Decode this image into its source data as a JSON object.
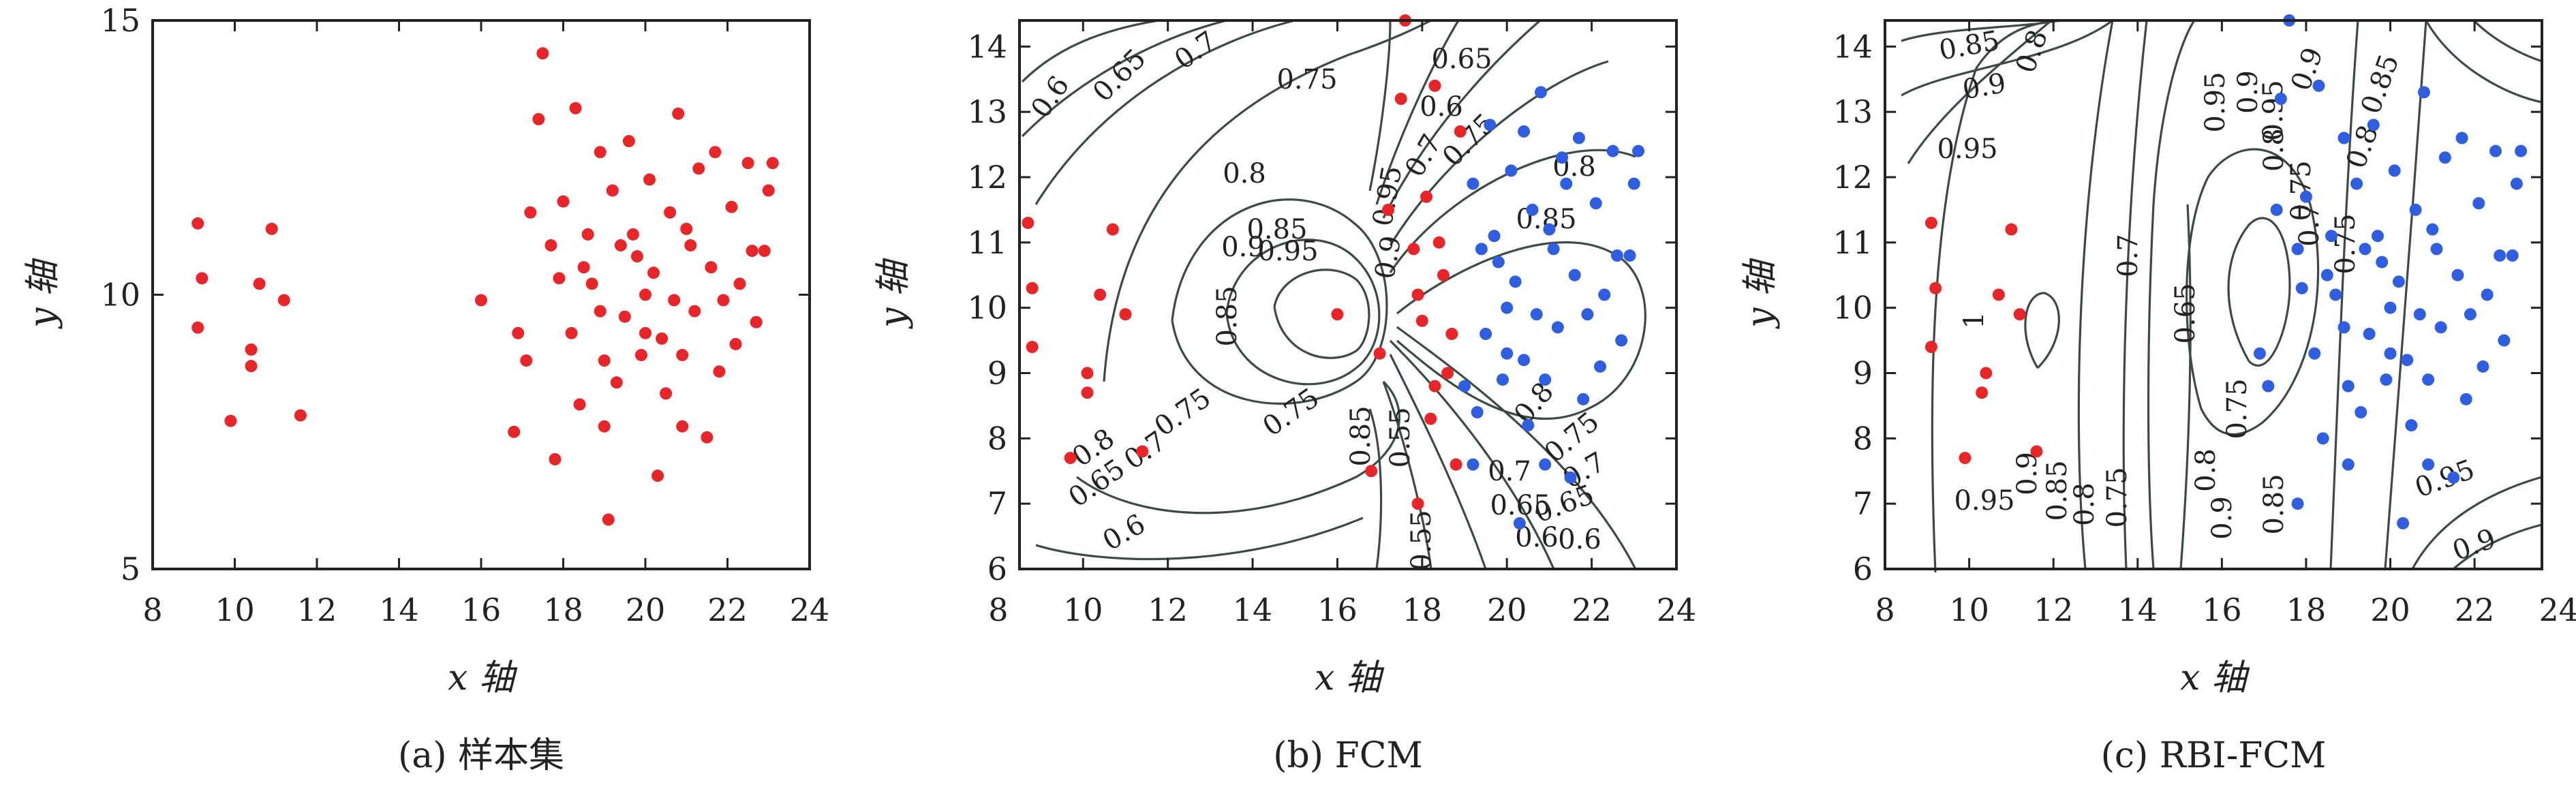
{
  "figure": {
    "colors": {
      "red": "#e8262a",
      "blue": "#2f5fe0",
      "contour": "#3d4a44"
    }
  },
  "chart_data": [
    {
      "type": "scatter",
      "caption": "(a) 样本集",
      "xlabel": "x 轴",
      "ylabel": "y 轴",
      "xlim": [
        8,
        24
      ],
      "ylim": [
        5,
        15
      ],
      "xticks": [
        8,
        10,
        12,
        14,
        16,
        18,
        20,
        22,
        24
      ],
      "yticks": [
        5,
        10,
        15
      ],
      "series": [
        {
          "color": "#e8262a",
          "points": [
            [
              9.1,
              11.3
            ],
            [
              9.2,
              10.3
            ],
            [
              9.1,
              9.4
            ],
            [
              9.9,
              7.7
            ],
            [
              10.4,
              9.0
            ],
            [
              10.4,
              8.7
            ],
            [
              10.6,
              10.2
            ],
            [
              10.9,
              11.2
            ],
            [
              11.2,
              9.9
            ],
            [
              11.6,
              7.8
            ],
            [
              16.0,
              9.9
            ],
            [
              16.8,
              7.5
            ],
            [
              16.9,
              9.3
            ],
            [
              17.1,
              8.8
            ],
            [
              17.2,
              11.5
            ],
            [
              17.4,
              13.2
            ],
            [
              17.5,
              14.4
            ],
            [
              17.7,
              10.9
            ],
            [
              17.8,
              7.0
            ],
            [
              18.0,
              11.7
            ],
            [
              18.3,
              13.4
            ],
            [
              18.5,
              10.5
            ],
            [
              18.9,
              12.6
            ],
            [
              19.0,
              7.6
            ],
            [
              19.1,
              5.9
            ],
            [
              19.2,
              11.9
            ],
            [
              19.5,
              9.6
            ],
            [
              19.7,
              11.1
            ],
            [
              19.9,
              8.9
            ],
            [
              20.0,
              10.0
            ],
            [
              20.1,
              12.1
            ],
            [
              20.3,
              6.7
            ],
            [
              20.4,
              9.2
            ],
            [
              20.6,
              11.5
            ],
            [
              20.8,
              13.3
            ],
            [
              20.9,
              7.6
            ],
            [
              21.1,
              10.9
            ],
            [
              21.3,
              12.3
            ],
            [
              21.5,
              7.4
            ],
            [
              21.7,
              12.6
            ],
            [
              21.9,
              9.9
            ],
            [
              22.1,
              11.6
            ],
            [
              22.3,
              10.2
            ],
            [
              22.5,
              12.4
            ],
            [
              22.7,
              9.5
            ],
            [
              22.9,
              10.8
            ],
            [
              23.0,
              11.9
            ],
            [
              23.1,
              12.4
            ],
            [
              18.2,
              9.3
            ],
            [
              18.7,
              10.2
            ],
            [
              19.3,
              8.4
            ],
            [
              19.8,
              10.7
            ],
            [
              20.5,
              8.2
            ],
            [
              21.2,
              9.7
            ],
            [
              21.8,
              8.6
            ],
            [
              22.2,
              9.1
            ],
            [
              18.4,
              8.0
            ],
            [
              19.6,
              12.8
            ],
            [
              20.2,
              10.4
            ],
            [
              20.7,
              9.9
            ],
            [
              21.0,
              11.2
            ],
            [
              18.9,
              9.7
            ],
            [
              19.4,
              10.9
            ],
            [
              17.9,
              10.3
            ],
            [
              18.6,
              11.1
            ],
            [
              20.9,
              8.9
            ],
            [
              21.6,
              10.5
            ],
            [
              22.6,
              10.8
            ],
            [
              19.0,
              8.8
            ],
            [
              20.0,
              9.3
            ]
          ]
        }
      ]
    },
    {
      "type": "scatter",
      "caption": "(b) FCM",
      "xlabel": "x 轴",
      "ylabel": "y 轴",
      "xlim": [
        8.5,
        24
      ],
      "ylim": [
        6,
        14.4
      ],
      "xticks": [
        8,
        10,
        12,
        14,
        16,
        18,
        20,
        22,
        24
      ],
      "yticks": [
        6,
        7,
        8,
        9,
        10,
        11,
        12,
        13,
        14
      ],
      "contour_labels": [
        "0.6",
        "0.65",
        "0.7",
        "0.75",
        "0.8",
        "0.85",
        "0.9",
        "0.95",
        "0.55",
        "0.6",
        "0.65",
        "0.7",
        "0.75",
        "0.8",
        "0.85",
        "0.75",
        "0.7",
        "0.65",
        "0.6",
        "0.8",
        "0.75",
        "0.7",
        "0.65",
        "0.6",
        "0.55",
        "0.85",
        "0.9",
        "0.95",
        "0.7",
        "0.75",
        "0.8",
        "0.85",
        "0.6",
        "0.65"
      ],
      "series": [
        {
          "color": "#e8262a",
          "points": [
            [
              8.7,
              11.3
            ],
            [
              8.8,
              10.3
            ],
            [
              8.8,
              9.4
            ],
            [
              9.7,
              7.7
            ],
            [
              10.1,
              9.0
            ],
            [
              10.1,
              8.7
            ],
            [
              10.4,
              10.2
            ],
            [
              10.7,
              11.2
            ],
            [
              11.0,
              9.9
            ],
            [
              11.4,
              7.8
            ],
            [
              16.0,
              9.9
            ],
            [
              16.8,
              7.5
            ],
            [
              17.0,
              9.3
            ],
            [
              17.2,
              11.5
            ],
            [
              17.5,
              13.2
            ],
            [
              17.6,
              14.4
            ],
            [
              17.8,
              10.9
            ],
            [
              17.9,
              7.0
            ],
            [
              18.1,
              11.7
            ],
            [
              18.3,
              13.4
            ],
            [
              18.5,
              10.5
            ],
            [
              18.9,
              12.7
            ],
            [
              18.6,
              9.0
            ],
            [
              18.2,
              8.3
            ],
            [
              17.9,
              10.2
            ],
            [
              18.4,
              11.0
            ],
            [
              18.7,
              9.6
            ],
            [
              18.0,
              9.8
            ],
            [
              18.8,
              7.6
            ],
            [
              18.3,
              8.8
            ]
          ]
        },
        {
          "color": "#2f5fe0",
          "points": [
            [
              19.2,
              11.9
            ],
            [
              19.5,
              9.6
            ],
            [
              19.7,
              11.1
            ],
            [
              19.9,
              8.9
            ],
            [
              20.0,
              10.0
            ],
            [
              20.1,
              12.1
            ],
            [
              20.3,
              6.7
            ],
            [
              20.4,
              9.2
            ],
            [
              20.6,
              11.5
            ],
            [
              20.8,
              13.3
            ],
            [
              20.9,
              7.6
            ],
            [
              21.1,
              10.9
            ],
            [
              21.3,
              12.3
            ],
            [
              21.5,
              7.4
            ],
            [
              21.7,
              12.6
            ],
            [
              21.9,
              9.9
            ],
            [
              22.1,
              11.6
            ],
            [
              22.3,
              10.2
            ],
            [
              22.5,
              12.4
            ],
            [
              22.7,
              9.5
            ],
            [
              22.9,
              10.8
            ],
            [
              23.0,
              11.9
            ],
            [
              23.1,
              12.4
            ],
            [
              19.3,
              8.4
            ],
            [
              19.8,
              10.7
            ],
            [
              20.5,
              8.2
            ],
            [
              21.2,
              9.7
            ],
            [
              21.8,
              8.6
            ],
            [
              22.2,
              9.1
            ],
            [
              19.6,
              12.8
            ],
            [
              20.2,
              10.4
            ],
            [
              20.7,
              9.9
            ],
            [
              21.0,
              11.2
            ],
            [
              19.4,
              10.9
            ],
            [
              20.9,
              8.9
            ],
            [
              21.6,
              10.5
            ],
            [
              22.6,
              10.8
            ],
            [
              19.0,
              8.8
            ],
            [
              20.0,
              9.3
            ],
            [
              19.2,
              7.6
            ],
            [
              21.4,
              11.9
            ],
            [
              20.4,
              12.7
            ]
          ]
        }
      ]
    },
    {
      "type": "scatter",
      "caption": "(c) RBI-FCM",
      "xlabel": "x 轴",
      "ylabel": "y 轴",
      "xlim": [
        8,
        23.6
      ],
      "ylim": [
        6,
        14.4
      ],
      "xticks": [
        8,
        10,
        12,
        14,
        16,
        18,
        20,
        22,
        24
      ],
      "yticks": [
        6,
        7,
        8,
        9,
        10,
        11,
        12,
        13,
        14
      ],
      "contour_labels": [
        "0.85",
        "0.9",
        "0.8",
        "0.95",
        "1",
        "0.95",
        "0.9",
        "0.85",
        "0.8",
        "0.75",
        "0.7",
        "0.65",
        "0.95",
        "0.9",
        "0.85",
        "0.8",
        "0.75",
        "0.7",
        "0.75",
        "0.8",
        "0.85",
        "0.9",
        "0.95",
        "0.9",
        "0.95",
        "0.9",
        "0.8",
        "0.75"
      ],
      "series": [
        {
          "color": "#e8262a",
          "points": [
            [
              9.1,
              11.3
            ],
            [
              9.2,
              10.3
            ],
            [
              9.1,
              9.4
            ],
            [
              9.9,
              7.7
            ],
            [
              10.4,
              9.0
            ],
            [
              10.3,
              8.7
            ],
            [
              10.7,
              10.2
            ],
            [
              11.0,
              11.2
            ],
            [
              11.2,
              9.9
            ],
            [
              11.6,
              7.8
            ]
          ]
        },
        {
          "color": "#2f5fe0",
          "points": [
            [
              16.9,
              9.3
            ],
            [
              17.1,
              8.8
            ],
            [
              17.3,
              11.5
            ],
            [
              17.4,
              13.2
            ],
            [
              17.6,
              14.4
            ],
            [
              17.8,
              10.9
            ],
            [
              17.8,
              7.0
            ],
            [
              18.0,
              11.7
            ],
            [
              18.3,
              13.4
            ],
            [
              18.5,
              10.5
            ],
            [
              18.9,
              12.6
            ],
            [
              19.0,
              7.6
            ],
            [
              19.2,
              11.9
            ],
            [
              19.5,
              9.6
            ],
            [
              19.7,
              11.1
            ],
            [
              19.9,
              8.9
            ],
            [
              20.0,
              10.0
            ],
            [
              20.1,
              12.1
            ],
            [
              20.3,
              6.7
            ],
            [
              20.4,
              9.2
            ],
            [
              20.6,
              11.5
            ],
            [
              20.8,
              13.3
            ],
            [
              20.9,
              7.6
            ],
            [
              21.1,
              10.9
            ],
            [
              21.3,
              12.3
            ],
            [
              21.5,
              7.4
            ],
            [
              21.7,
              12.6
            ],
            [
              21.9,
              9.9
            ],
            [
              22.1,
              11.6
            ],
            [
              22.3,
              10.2
            ],
            [
              22.5,
              12.4
            ],
            [
              22.7,
              9.5
            ],
            [
              22.9,
              10.8
            ],
            [
              23.0,
              11.9
            ],
            [
              23.1,
              12.4
            ],
            [
              18.2,
              9.3
            ],
            [
              18.7,
              10.2
            ],
            [
              19.3,
              8.4
            ],
            [
              19.8,
              10.7
            ],
            [
              20.5,
              8.2
            ],
            [
              21.2,
              9.7
            ],
            [
              21.8,
              8.6
            ],
            [
              22.2,
              9.1
            ],
            [
              18.4,
              8.0
            ],
            [
              19.6,
              12.8
            ],
            [
              20.2,
              10.4
            ],
            [
              20.7,
              9.9
            ],
            [
              21.0,
              11.2
            ],
            [
              18.9,
              9.7
            ],
            [
              19.4,
              10.9
            ],
            [
              17.9,
              10.3
            ],
            [
              18.6,
              11.1
            ],
            [
              20.9,
              8.9
            ],
            [
              21.6,
              10.5
            ],
            [
              22.6,
              10.8
            ],
            [
              19.0,
              8.8
            ],
            [
              20.0,
              9.3
            ]
          ]
        }
      ]
    }
  ]
}
